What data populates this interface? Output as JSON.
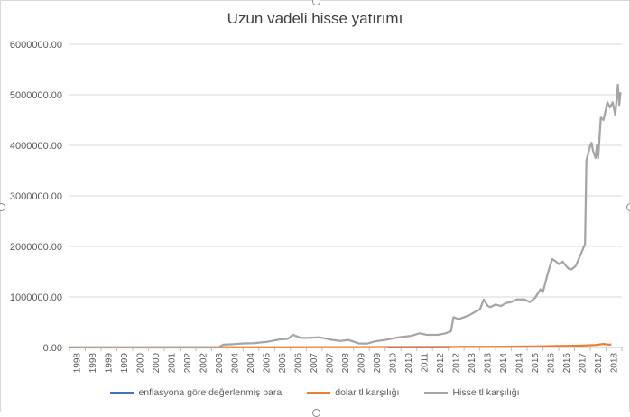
{
  "chart_data": {
    "type": "line",
    "title": "Uzun vadeli hisse yatırımı",
    "xlabel": "",
    "ylabel": "",
    "ylim": [
      0,
      6000000
    ],
    "y_ticks": [
      "0.00",
      "1000000.00",
      "2000000.00",
      "3000000.00",
      "4000000.00",
      "5000000.00",
      "6000000.00"
    ],
    "x_ticks": [
      "1998",
      "1998",
      "1999",
      "1999",
      "2000",
      "2000",
      "2001",
      "2002",
      "2002",
      "2003",
      "2004",
      "2004",
      "2005",
      "2006",
      "2006",
      "2007",
      "2007",
      "2008",
      "2009",
      "2009",
      "2010",
      "2010",
      "2011",
      "2012",
      "2012",
      "2013",
      "2013",
      "2014",
      "2014",
      "2015",
      "2016",
      "2016",
      "2017",
      "2017",
      "2018"
    ],
    "grid": "horizontal",
    "legend_position": "bottom",
    "series": [
      {
        "name": "enflasyona göre değerlenmiş para",
        "color": "#4472C4",
        "points": [
          [
            2010.1,
            2000
          ],
          [
            2010.5,
            3000
          ],
          [
            2011,
            4000
          ],
          [
            2011.5,
            5000
          ],
          [
            2012,
            6000
          ],
          [
            2012.5,
            6500
          ]
        ]
      },
      {
        "name": "dolar tl karşılığı",
        "color": "#ED7D31",
        "points": [
          [
            1998,
            1000
          ],
          [
            2000,
            2000
          ],
          [
            2002,
            3000
          ],
          [
            2004,
            4000
          ],
          [
            2006,
            5000
          ],
          [
            2008,
            7000
          ],
          [
            2010,
            9000
          ],
          [
            2012,
            11000
          ],
          [
            2013,
            13000
          ],
          [
            2014,
            15000
          ],
          [
            2015,
            17000
          ],
          [
            2016,
            22000
          ],
          [
            2016.5,
            28000
          ],
          [
            2017,
            33000
          ],
          [
            2017.5,
            38000
          ],
          [
            2018,
            50000
          ],
          [
            2018.3,
            70000
          ],
          [
            2018.5,
            55000
          ],
          [
            2018.6,
            60000
          ]
        ]
      },
      {
        "name": "Hisse tl karşılığı",
        "color": "#A5A5A5",
        "points": [
          [
            1998,
            0
          ],
          [
            2003.65,
            0
          ],
          [
            2003.85,
            55000
          ],
          [
            2004.2,
            65000
          ],
          [
            2004.6,
            80000
          ],
          [
            2005,
            85000
          ],
          [
            2005.5,
            110000
          ],
          [
            2006,
            160000
          ],
          [
            2006.3,
            170000
          ],
          [
            2006.5,
            250000
          ],
          [
            2006.8,
            190000
          ],
          [
            2007,
            190000
          ],
          [
            2007.5,
            200000
          ],
          [
            2008,
            150000
          ],
          [
            2008.3,
            130000
          ],
          [
            2008.6,
            150000
          ],
          [
            2009,
            80000
          ],
          [
            2009.3,
            75000
          ],
          [
            2009.6,
            120000
          ],
          [
            2010,
            150000
          ],
          [
            2010.5,
            200000
          ],
          [
            2011,
            230000
          ],
          [
            2011.3,
            280000
          ],
          [
            2011.6,
            250000
          ],
          [
            2012,
            250000
          ],
          [
            2012.3,
            280000
          ],
          [
            2012.5,
            320000
          ],
          [
            2012.6,
            600000
          ],
          [
            2012.8,
            560000
          ],
          [
            2013,
            600000
          ],
          [
            2013.2,
            640000
          ],
          [
            2013.4,
            700000
          ],
          [
            2013.6,
            750000
          ],
          [
            2013.75,
            950000
          ],
          [
            2013.9,
            820000
          ],
          [
            2014,
            800000
          ],
          [
            2014.2,
            850000
          ],
          [
            2014.4,
            820000
          ],
          [
            2014.6,
            880000
          ],
          [
            2014.8,
            900000
          ],
          [
            2015,
            950000
          ],
          [
            2015.3,
            950000
          ],
          [
            2015.5,
            900000
          ],
          [
            2015.7,
            980000
          ],
          [
            2015.9,
            1150000
          ],
          [
            2016,
            1100000
          ],
          [
            2016.2,
            1500000
          ],
          [
            2016.35,
            1750000
          ],
          [
            2016.5,
            1700000
          ],
          [
            2016.6,
            1650000
          ],
          [
            2016.75,
            1700000
          ],
          [
            2016.9,
            1600000
          ],
          [
            2017,
            1550000
          ],
          [
            2017.1,
            1550000
          ],
          [
            2017.25,
            1620000
          ],
          [
            2017.4,
            1800000
          ],
          [
            2017.6,
            2050000
          ],
          [
            2017.65,
            3700000
          ],
          [
            2017.8,
            4000000
          ],
          [
            2017.85,
            4050000
          ],
          [
            2017.9,
            3900000
          ],
          [
            2018,
            3750000
          ],
          [
            2018.05,
            4000000
          ],
          [
            2018.1,
            3750000
          ],
          [
            2018.2,
            4550000
          ],
          [
            2018.3,
            4500000
          ],
          [
            2018.45,
            4850000
          ],
          [
            2018.55,
            4750000
          ],
          [
            2018.65,
            4850000
          ],
          [
            2018.75,
            4600000
          ],
          [
            2018.85,
            5200000
          ],
          [
            2018.9,
            4800000
          ],
          [
            2018.95,
            5050000
          ]
        ]
      }
    ]
  }
}
